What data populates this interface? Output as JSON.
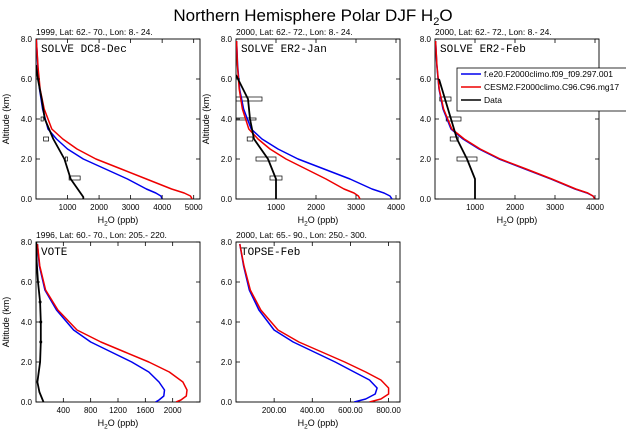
{
  "figure": {
    "title_main": "Northern Hemisphere Polar DJF H",
    "title_sub": "2",
    "title_tail": "O"
  },
  "legend": {
    "entries": [
      {
        "name": "f.e20.F2000climo.f09_f09.297.001",
        "color": "#0000ee"
      },
      {
        "name": "CESM2.F2000climo.C96.C96.mg17",
        "color": "#ee0000"
      },
      {
        "name": "Data",
        "color": "#000000"
      }
    ]
  },
  "chart_data": [
    {
      "type": "line",
      "header": "1999, Lat: 62.- 70., Lon: 8.- 24.",
      "title": "SOLVE DC8-Dec",
      "ylabel": "Altitude (km)",
      "xlabel_main": "H",
      "xlabel_sub": "2",
      "xlabel_tail": "O (ppb)",
      "xlim": [
        0,
        5200
      ],
      "ylim": [
        0,
        8
      ],
      "xticks": [
        1000,
        2000,
        3000,
        4000,
        5000
      ],
      "xtick_labels": [
        "1000",
        "2000",
        "3000",
        "4000",
        "5000"
      ],
      "yticks": [
        0,
        2,
        4,
        6,
        8
      ],
      "ytick_labels": [
        "0.0",
        "2.0",
        "4.0",
        "6.0",
        "8.0"
      ],
      "series": [
        {
          "name": "f.e20.F2000climo.f09_f09.297.001",
          "color": "#0000ee",
          "width": 1.5,
          "x": [
            4000,
            3960,
            3800,
            3500,
            2900,
            2200,
            1500,
            1000,
            650,
            380,
            210,
            110,
            60,
            30,
            10
          ],
          "y": [
            0,
            0.15,
            0.3,
            0.5,
            1,
            1.5,
            2,
            2.5,
            3,
            3.5,
            4.5,
            5.5,
            6.5,
            7.5,
            8
          ]
        },
        {
          "name": "CESM2.F2000climo.C96.C96.mg17",
          "color": "#ee0000",
          "width": 1.5,
          "x": [
            4950,
            4900,
            4700,
            4300,
            3500,
            2700,
            1900,
            1300,
            850,
            500,
            260,
            130,
            70,
            30,
            10
          ],
          "y": [
            0,
            0.15,
            0.3,
            0.5,
            1,
            1.5,
            2,
            2.5,
            3,
            3.5,
            4.5,
            5.5,
            6.5,
            7.5,
            8
          ]
        },
        {
          "name": "Data",
          "color": "#000000",
          "width": 1.8,
          "x": [
            1500,
            1500,
            1100,
            900,
            550,
            280,
            180,
            60,
            0
          ],
          "y": [
            0,
            0.1,
            1,
            2,
            3,
            4,
            5,
            6,
            6.7
          ]
        }
      ],
      "boxes": [
        {
          "x0": 1050,
          "x1": 1400,
          "y0": 0.95,
          "y1": 1.15
        },
        {
          "x0": 930,
          "x1": 1000,
          "y0": 1.9,
          "y1": 2.1
        },
        {
          "x0": 240,
          "x1": 400,
          "y0": 2.9,
          "y1": 3.1
        },
        {
          "x0": 160,
          "x1": 230,
          "y0": 3.9,
          "y1": 4.1
        }
      ]
    },
    {
      "type": "line",
      "header": "2000, Lat: 62.- 72., Lon: 8.- 24.",
      "title": "SOLVE ER2-Jan",
      "ylabel": "Altitude (km)",
      "xlabel_main": "H",
      "xlabel_sub": "2",
      "xlabel_tail": "O (ppb)",
      "xlim": [
        0,
        4100
      ],
      "ylim": [
        0,
        8
      ],
      "xticks": [
        1000,
        2000,
        3000,
        4000
      ],
      "xtick_labels": [
        "1000",
        "2000",
        "3000",
        "4000"
      ],
      "yticks": [
        0,
        2,
        4,
        6,
        8
      ],
      "ytick_labels": [
        "0.0",
        "2.0",
        "4.0",
        "6.0",
        "8.0"
      ],
      "series": [
        {
          "name": "f.e20.F2000climo.f09_f09.297.001",
          "color": "#0000ee",
          "width": 1.5,
          "x": [
            3900,
            3850,
            3700,
            3400,
            2850,
            2200,
            1550,
            1050,
            650,
            380,
            190,
            90,
            40,
            15
          ],
          "y": [
            0,
            0.15,
            0.3,
            0.5,
            1,
            1.5,
            2,
            2.5,
            3,
            3.5,
            4.5,
            5.5,
            6.7,
            7.9
          ]
        },
        {
          "name": "CESM2.F2000climo.C96.C96.mg17",
          "color": "#ee0000",
          "width": 1.5,
          "x": [
            3100,
            3060,
            2950,
            2700,
            2250,
            1750,
            1250,
            850,
            550,
            320,
            160,
            80,
            35,
            15
          ],
          "y": [
            0,
            0.15,
            0.3,
            0.5,
            1,
            1.5,
            2,
            2.5,
            3,
            3.5,
            4.5,
            5.5,
            6.7,
            7.9
          ]
        },
        {
          "name": "Data",
          "color": "#000000",
          "width": 1.8,
          "x": [
            1000,
            1000,
            800,
            450,
            350,
            300,
            0
          ],
          "y": [
            0,
            1,
            2,
            3,
            4,
            5,
            6.2
          ]
        }
      ],
      "boxes": [
        {
          "x0": 850,
          "x1": 1150,
          "y0": 0.95,
          "y1": 1.15
        },
        {
          "x0": 500,
          "x1": 1000,
          "y0": 1.9,
          "y1": 2.1
        },
        {
          "x0": 280,
          "x1": 420,
          "y0": 2.9,
          "y1": 3.1
        },
        {
          "x0": 0,
          "x1": 500,
          "y0": 3.95,
          "y1": 4.05
        },
        {
          "x0": 0,
          "x1": 650,
          "y0": 4.9,
          "y1": 5.1
        }
      ]
    },
    {
      "type": "line",
      "header": "2000, Lat: 62.- 72., Lon: 8.- 24.",
      "title": "SOLVE ER2-Feb",
      "ylabel": "",
      "xlabel_main": "H",
      "xlabel_sub": "2",
      "xlabel_tail": "O (ppb)",
      "xlim": [
        0,
        4100
      ],
      "ylim": [
        0,
        8
      ],
      "xticks": [
        1000,
        2000,
        3000,
        4000
      ],
      "xtick_labels": [
        "1000",
        "2000",
        "3000",
        "4000"
      ],
      "yticks": [
        0,
        2,
        4,
        6,
        8
      ],
      "ytick_labels": [
        "0.0",
        "2.0",
        "4.0",
        "6.0",
        "8.0"
      ],
      "series": [
        {
          "name": "f.e20.F2000climo.f09_f09.297.001",
          "color": "#0000ee",
          "width": 1.5,
          "x": [
            4000,
            3950,
            3800,
            3500,
            2900,
            2250,
            1600,
            1100,
            700,
            400,
            200,
            100,
            45,
            15
          ],
          "y": [
            0,
            0.15,
            0.3,
            0.5,
            1,
            1.5,
            2,
            2.5,
            3,
            3.5,
            4.5,
            5.5,
            6.7,
            7.9
          ]
        },
        {
          "name": "CESM2.F2000climo.C96.C96.mg17",
          "color": "#ee0000",
          "width": 1.5,
          "x": [
            4000,
            3950,
            3820,
            3520,
            2920,
            2280,
            1630,
            1130,
            730,
            420,
            215,
            105,
            48,
            15
          ],
          "y": [
            0,
            0.15,
            0.3,
            0.5,
            1,
            1.5,
            2,
            2.5,
            3,
            3.5,
            4.5,
            5.5,
            6.7,
            7.9
          ]
        },
        {
          "name": "Data",
          "color": "#000000",
          "width": 1.8,
          "x": [
            1000,
            1000,
            800,
            550,
            400,
            250,
            100
          ],
          "y": [
            0,
            1,
            2,
            3,
            4,
            5,
            6
          ]
        }
      ],
      "boxes": [
        {
          "x0": 550,
          "x1": 1050,
          "y0": 1.9,
          "y1": 2.1
        },
        {
          "x0": 380,
          "x1": 580,
          "y0": 2.9,
          "y1": 3.1
        },
        {
          "x0": 280,
          "x1": 650,
          "y0": 3.9,
          "y1": 4.1
        },
        {
          "x0": 120,
          "x1": 400,
          "y0": 4.9,
          "y1": 5.1
        }
      ]
    },
    {
      "type": "line",
      "header": "1996, Lat: 60.- 70., Lon: 205.- 220.",
      "title": "VOTE",
      "ylabel": "Altitude (km)",
      "xlabel_main": "H",
      "xlabel_sub": "2",
      "xlabel_tail": "O (ppb)",
      "xlim": [
        0,
        2400
      ],
      "ylim": [
        0,
        8
      ],
      "xticks": [
        400,
        800,
        1200,
        1600,
        2000
      ],
      "xtick_labels": [
        "400",
        "800",
        "1200",
        "1600",
        "2000"
      ],
      "yticks": [
        0,
        2,
        4,
        6,
        8
      ],
      "ytick_labels": [
        "0.0",
        "2.0",
        "4.0",
        "6.0",
        "8.0"
      ],
      "series": [
        {
          "name": "f.e20.F2000climo.f09_f09.297.001",
          "color": "#0000ee",
          "width": 1.5,
          "x": [
            1750,
            1800,
            1870,
            1880,
            1800,
            1650,
            1400,
            1100,
            800,
            550,
            300,
            130,
            50,
            20
          ],
          "y": [
            0,
            0.1,
            0.3,
            0.6,
            1,
            1.5,
            2,
            2.5,
            3,
            3.6,
            4.6,
            5.6,
            6.8,
            7.9
          ]
        },
        {
          "name": "CESM2.F2000climo.C96.C96.mg17",
          "color": "#ee0000",
          "width": 1.5,
          "x": [
            2050,
            2120,
            2200,
            2210,
            2150,
            1950,
            1650,
            1300,
            950,
            600,
            320,
            140,
            55,
            20
          ],
          "y": [
            0,
            0.1,
            0.3,
            0.6,
            1,
            1.5,
            2,
            2.5,
            3,
            3.6,
            4.6,
            5.6,
            6.8,
            7.9
          ]
        },
        {
          "name": "Data",
          "color": "#000000",
          "width": 1.8,
          "x": [
            110,
            50,
            20,
            60,
            70,
            70,
            60,
            30,
            10,
            5
          ],
          "y": [
            0,
            0.5,
            1,
            2,
            3,
            4,
            5,
            6,
            7,
            8
          ]
        }
      ],
      "boxes": [
        {
          "x0": 55,
          "x1": 85,
          "y0": 2.96,
          "y1": 3.04
        },
        {
          "x0": 55,
          "x1": 85,
          "y0": 3.96,
          "y1": 4.04
        },
        {
          "x0": 45,
          "x1": 75,
          "y0": 4.96,
          "y1": 5.04
        }
      ]
    },
    {
      "type": "line",
      "header": "2000, Lat: 65.- 90., Lon: 250.- 300.",
      "title": "TOPSE-Feb",
      "ylabel": "",
      "xlabel_main": "H",
      "xlabel_sub": "2",
      "xlabel_tail": "O (ppb)",
      "xlim": [
        0,
        860
      ],
      "ylim": [
        0,
        8
      ],
      "xticks": [
        200,
        400,
        600,
        800
      ],
      "xtick_labels": [
        "200.00",
        "400.00",
        "600.00",
        "800.00"
      ],
      "yticks": [
        0,
        2,
        4,
        6,
        8
      ],
      "ytick_labels": [
        "0.0",
        "2.0",
        "4.0",
        "6.0",
        "8.0"
      ],
      "series": [
        {
          "name": "f.e20.F2000climo.f09_f09.297.001",
          "color": "#0000ee",
          "width": 1.5,
          "x": [
            620,
            680,
            730,
            740,
            700,
            620,
            520,
            410,
            300,
            200,
            120,
            70,
            40,
            20
          ],
          "y": [
            0,
            0.15,
            0.4,
            0.7,
            1.1,
            1.5,
            2,
            2.5,
            3,
            3.6,
            4.6,
            5.6,
            6.8,
            7.9
          ]
        },
        {
          "name": "CESM2.F2000climo.C96.C96.mg17",
          "color": "#ee0000",
          "width": 1.5,
          "x": [
            700,
            760,
            800,
            800,
            760,
            680,
            570,
            450,
            330,
            220,
            130,
            75,
            42,
            20
          ],
          "y": [
            0,
            0.15,
            0.4,
            0.7,
            1.1,
            1.5,
            2,
            2.5,
            3,
            3.6,
            4.6,
            5.6,
            6.8,
            7.9
          ]
        }
      ],
      "boxes": []
    }
  ]
}
